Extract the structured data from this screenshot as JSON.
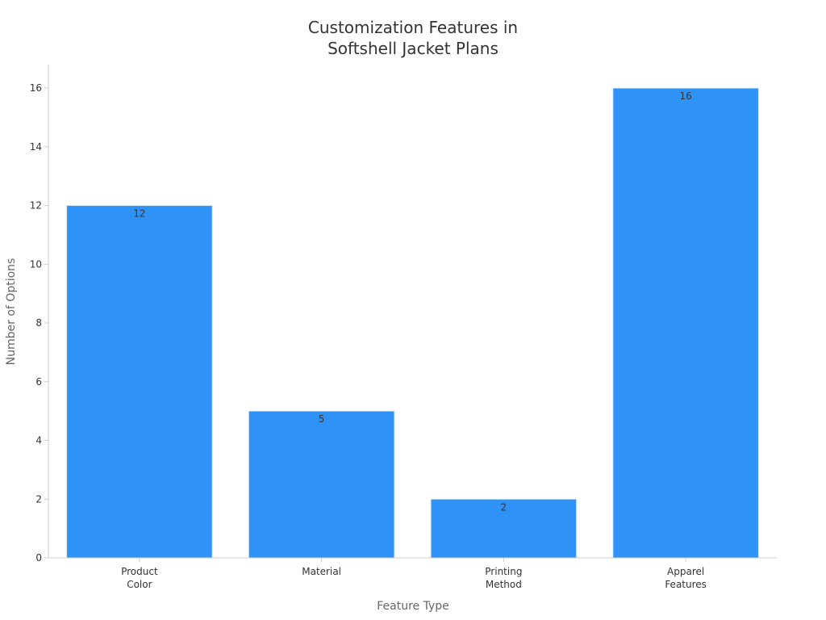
{
  "chart_data": {
    "type": "bar",
    "title_lines": [
      "Customization Features in",
      "Softshell Jacket Plans"
    ],
    "xlabel": "Feature Type",
    "ylabel": "Number of Options",
    "categories": [
      [
        "Product",
        "Color"
      ],
      [
        "Material"
      ],
      [
        "Printing",
        "Method"
      ],
      [
        "Apparel",
        "Features"
      ]
    ],
    "values": [
      12,
      5,
      2,
      16
    ],
    "data_labels": [
      "12",
      "5",
      "2",
      "16"
    ],
    "yticks": [
      "0",
      "2",
      "4",
      "6",
      "8",
      "10",
      "12",
      "14",
      "16"
    ],
    "ylim": [
      0,
      16.8
    ],
    "grid": false,
    "legend": "none",
    "colors": {
      "bar": "#2f92f7",
      "bar_edge": "#d6e8fc",
      "axis": "#cccccc",
      "label": "#666666",
      "tick": "#333333"
    }
  }
}
